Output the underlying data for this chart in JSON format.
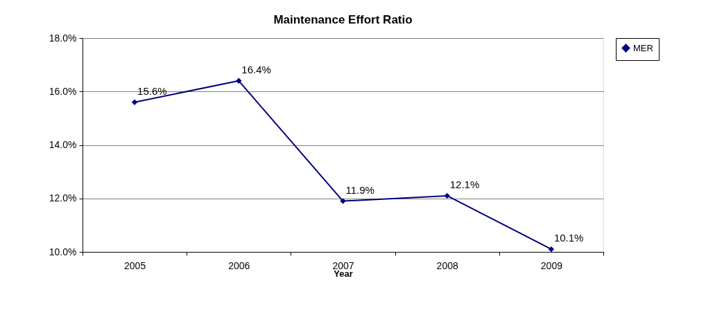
{
  "chart_data": {
    "type": "line",
    "title": "Maintenance Effort Ratio",
    "xlabel": "Year",
    "categories": [
      "2005",
      "2006",
      "2007",
      "2008",
      "2009"
    ],
    "series": [
      {
        "name": "MER",
        "color": "#000080",
        "values": [
          15.6,
          16.4,
          11.9,
          12.1,
          10.1
        ],
        "value_labels": [
          "15.6%",
          "16.4%",
          "11.9%",
          "12.1%",
          "10.1%"
        ]
      }
    ],
    "ylim": [
      10,
      18
    ],
    "yticks": [
      {
        "value": 10,
        "label": "10.0%"
      },
      {
        "value": 12,
        "label": "12.0%"
      },
      {
        "value": 14,
        "label": "14.0%"
      },
      {
        "value": 16,
        "label": "16.0%"
      },
      {
        "value": 18,
        "label": "18.0%"
      }
    ],
    "grid": "y",
    "legend": "right",
    "marker": "diamond",
    "line_style": "solid"
  }
}
